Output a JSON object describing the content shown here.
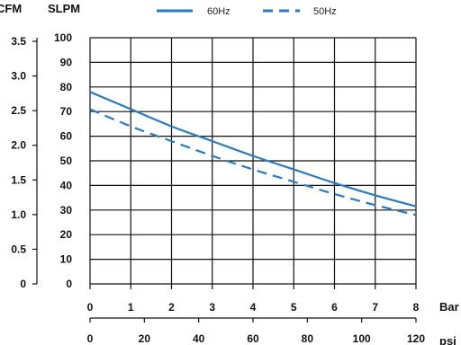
{
  "chart_data": {
    "type": "line",
    "title": "",
    "legend_placement": "top",
    "grid": true,
    "colors": {
      "series": "#2a7abf",
      "axis": "#111111"
    },
    "x": {
      "bar_label": "Bar",
      "bar_ticks": [
        "0",
        "1",
        "2",
        "3",
        "4",
        "5",
        "6",
        "7",
        "8"
      ],
      "bar_range": [
        0,
        8
      ],
      "psi_label": "psi",
      "psi_ticks": [
        "0",
        "20",
        "40",
        "60",
        "80",
        "100",
        "120"
      ]
    },
    "y": {
      "slpm_label": "SLPM",
      "slpm_ticks": [
        "0",
        "10",
        "20",
        "30",
        "40",
        "50",
        "60",
        "70",
        "80",
        "90",
        "100"
      ],
      "slpm_range": [
        0,
        100
      ],
      "cfm_label": "CFM",
      "cfm_ticks": [
        "0",
        "0.5",
        "1.0",
        "1.5",
        "2.0",
        "2.5",
        "3.0",
        "3.5"
      ]
    },
    "series": [
      {
        "name": "60Hz",
        "style": "solid",
        "x": [
          0,
          1,
          2,
          3,
          4,
          5,
          6,
          7,
          8
        ],
        "values": [
          78,
          71,
          64,
          58,
          52,
          46.5,
          41,
          36,
          31.5
        ]
      },
      {
        "name": "50Hz",
        "style": "dashed",
        "x": [
          0,
          1,
          2,
          3,
          4,
          5,
          6,
          7,
          8
        ],
        "values": [
          71,
          64,
          58,
          52,
          46.5,
          41.5,
          36.5,
          32,
          28
        ]
      }
    ]
  }
}
